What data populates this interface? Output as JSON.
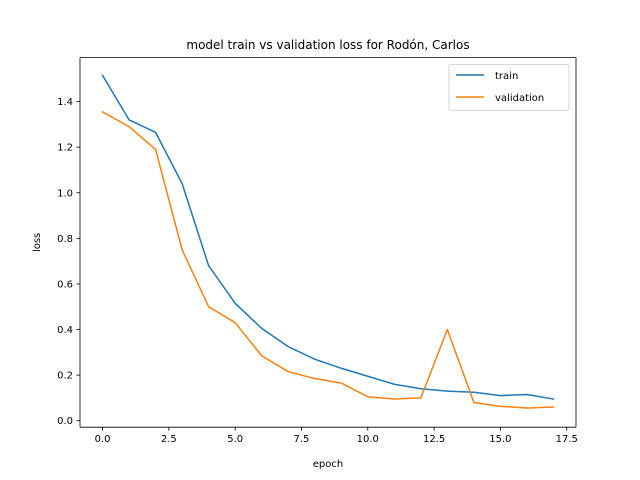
{
  "chart_data": {
    "type": "line",
    "title": "model train vs validation loss for Rodón, Carlos",
    "xlabel": "epoch",
    "ylabel": "loss",
    "xlim": [
      -0.85,
      17.85
    ],
    "ylim": [
      -0.0285,
      1.593
    ],
    "xticks": [
      0.0,
      2.5,
      5.0,
      7.5,
      10.0,
      12.5,
      15.0,
      17.5
    ],
    "xtick_labels": [
      "0.0",
      "2.5",
      "5.0",
      "7.5",
      "10.0",
      "12.5",
      "15.0",
      "17.5"
    ],
    "yticks": [
      0.0,
      0.2,
      0.4,
      0.6,
      0.8,
      1.0,
      1.2,
      1.4
    ],
    "ytick_labels": [
      "0.0",
      "0.2",
      "0.4",
      "0.6",
      "0.8",
      "1.0",
      "1.2",
      "1.4"
    ],
    "grid": false,
    "legend_position": "top-right",
    "x": [
      0,
      1,
      2,
      3,
      4,
      5,
      6,
      7,
      8,
      9,
      10,
      11,
      12,
      13,
      14,
      15,
      16,
      17
    ],
    "series": [
      {
        "name": "train",
        "color": "#1f77b4",
        "values": [
          1.515,
          1.32,
          1.265,
          1.04,
          0.68,
          0.515,
          0.405,
          0.325,
          0.27,
          0.23,
          0.195,
          0.16,
          0.14,
          0.13,
          0.125,
          0.11,
          0.115,
          0.095
        ]
      },
      {
        "name": "validation",
        "color": "#ff7f0e",
        "values": [
          1.355,
          1.29,
          1.19,
          0.75,
          0.5,
          0.43,
          0.285,
          0.215,
          0.185,
          0.165,
          0.105,
          0.095,
          0.1,
          0.4,
          0.08,
          0.063,
          0.056,
          0.06
        ]
      }
    ]
  }
}
